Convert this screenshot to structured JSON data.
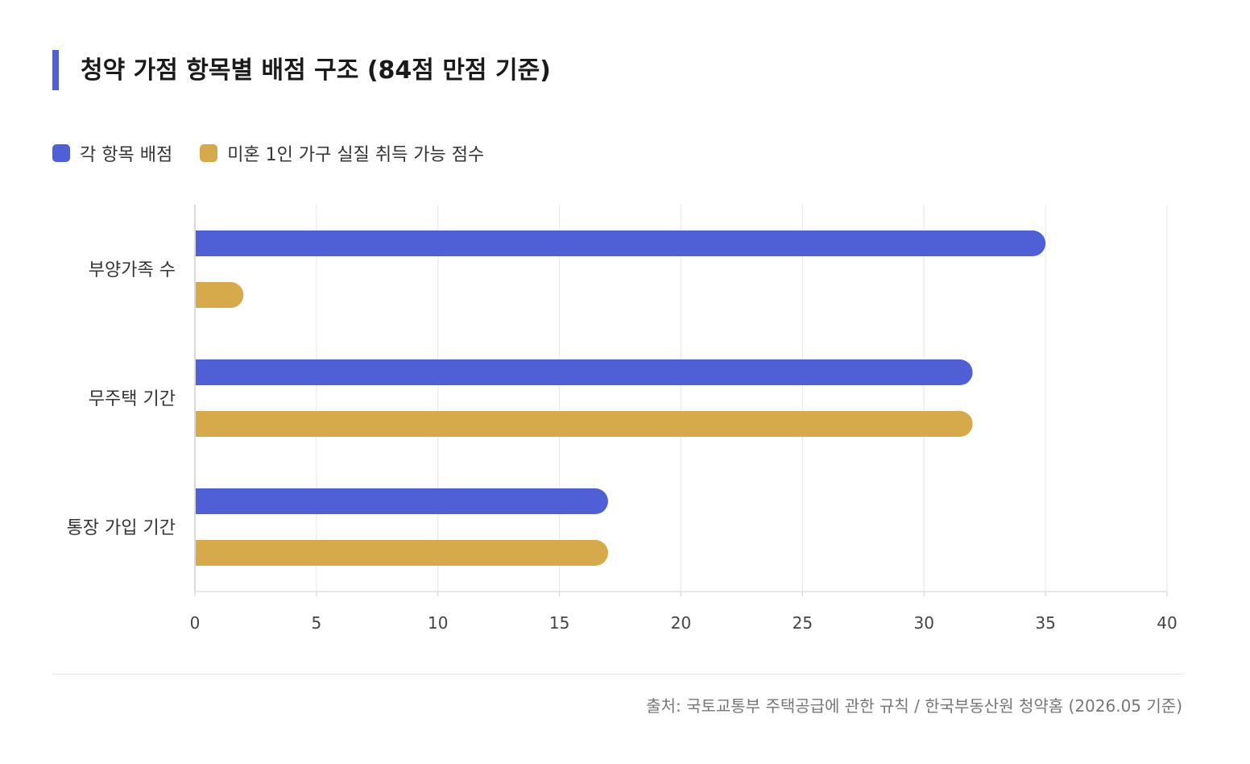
{
  "colors": {
    "accent": "#4f5fd6",
    "series1": "#4f5fd6",
    "series2": "#d6a94a"
  },
  "title": "청약 가점 항목별 배점 구조 (84점 만점 기준)",
  "source": "출처: 국토교통부 주택공급에 관한 규칙 / 한국부동산원 청약홈 (2026.05 기준)",
  "chart_data": {
    "type": "bar",
    "orientation": "horizontal",
    "title": "청약 가점 항목별 배점 구조 (84점 만점 기준)",
    "categories": [
      "부양가족 수",
      "무주택 기간",
      "통장 가입 기간"
    ],
    "series": [
      {
        "name": "각 항목 배점",
        "color": "#4f5fd6",
        "values": [
          35,
          32,
          17
        ]
      },
      {
        "name": "미혼 1인 가구 실질 취득 가능 점수",
        "color": "#d6a94a",
        "values": [
          2,
          32,
          17
        ]
      }
    ],
    "xlim": [
      0,
      40
    ],
    "xticks": [
      "0",
      "5",
      "10",
      "15",
      "20",
      "25",
      "30",
      "35",
      "40"
    ],
    "grid": true,
    "legend": "top-left"
  }
}
